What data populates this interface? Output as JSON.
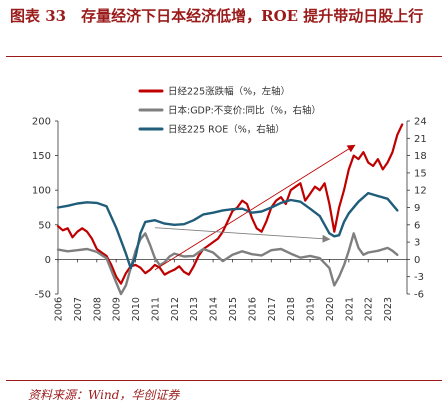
{
  "header": {
    "title": "图表 33　存量经济下日本经济低增，ROE 提升带动日股上行"
  },
  "footer": {
    "source": "资料来源：Wind，华创证券"
  },
  "chart_data": {
    "type": "line",
    "xlabel": "",
    "x_ticks": [
      "2006",
      "2007",
      "2008",
      "2009",
      "2010",
      "2011",
      "2012",
      "2013",
      "2014",
      "2015",
      "2016",
      "2017",
      "2018",
      "2019",
      "2020",
      "2021",
      "2022",
      "2023"
    ],
    "y_left": {
      "range": [
        -50,
        200
      ],
      "ticks": [
        -50,
        0,
        50,
        100,
        150,
        200
      ]
    },
    "y_right": {
      "range": [
        -6,
        24
      ],
      "ticks": [
        -6,
        -3,
        0,
        3,
        6,
        9,
        12,
        15,
        18,
        21,
        24
      ]
    },
    "legend_position": "top-center",
    "colors": {
      "nikkei": "#c00000",
      "gdp": "#7f7f7f",
      "roe": "#1f5d7a",
      "arrow": "#c00000",
      "arrow_gray": "#7f7f7f"
    },
    "series": [
      {
        "name": "日经225涨跌幅（%，左轴）",
        "axis": "left",
        "x": [
          2006.0,
          2006.25,
          2006.5,
          2006.75,
          2007.0,
          2007.25,
          2007.5,
          2007.75,
          2008.0,
          2008.25,
          2008.5,
          2008.75,
          2009.0,
          2009.25,
          2009.5,
          2009.75,
          2010.0,
          2010.25,
          2010.5,
          2010.75,
          2011.0,
          2011.25,
          2011.5,
          2011.75,
          2012.0,
          2012.25,
          2012.5,
          2012.75,
          2013.0,
          2013.25,
          2013.5,
          2013.75,
          2014.0,
          2014.25,
          2014.5,
          2014.75,
          2015.0,
          2015.25,
          2015.5,
          2015.75,
          2016.0,
          2016.25,
          2016.5,
          2016.75,
          2017.0,
          2017.25,
          2017.5,
          2017.75,
          2018.0,
          2018.25,
          2018.5,
          2018.75,
          2019.0,
          2019.25,
          2019.5,
          2019.75,
          2020.0,
          2020.25,
          2020.5,
          2020.75,
          2021.0,
          2021.25,
          2021.5,
          2021.75,
          2022.0,
          2022.25,
          2022.5,
          2022.75,
          2023.0,
          2023.25,
          2023.5,
          2023.75
        ],
        "values": [
          48,
          42,
          45,
          32,
          40,
          45,
          40,
          30,
          15,
          10,
          5,
          -8,
          -25,
          -35,
          -20,
          -10,
          -8,
          -12,
          -20,
          -15,
          -8,
          -12,
          -22,
          -18,
          -15,
          -10,
          -18,
          -22,
          -10,
          5,
          15,
          20,
          25,
          30,
          40,
          55,
          70,
          75,
          85,
          80,
          60,
          45,
          40,
          55,
          75,
          85,
          90,
          80,
          100,
          105,
          110,
          85,
          95,
          105,
          100,
          110,
          80,
          40,
          75,
          100,
          130,
          150,
          145,
          155,
          140,
          135,
          145,
          130,
          140,
          155,
          180,
          195
        ]
      },
      {
        "name": "日本:GDP:不变价:同比（%，右轴）",
        "axis": "right",
        "x": [
          2006.0,
          2006.5,
          2007.0,
          2007.5,
          2008.0,
          2008.5,
          2009.0,
          2009.25,
          2009.5,
          2009.75,
          2010.0,
          2010.25,
          2010.5,
          2010.75,
          2011.0,
          2011.25,
          2011.5,
          2011.75,
          2012.0,
          2012.5,
          2013.0,
          2013.5,
          2014.0,
          2014.5,
          2015.0,
          2015.5,
          2016.0,
          2016.5,
          2017.0,
          2017.5,
          2018.0,
          2018.5,
          2019.0,
          2019.5,
          2020.0,
          2020.25,
          2020.5,
          2020.75,
          2021.0,
          2021.25,
          2021.5,
          2021.75,
          2022.0,
          2022.5,
          2023.0,
          2023.25,
          2023.5
        ],
        "values": [
          1.7,
          1.4,
          1.6,
          1.8,
          1.3,
          0.2,
          -4.0,
          -6.0,
          -4.5,
          -1.5,
          1.5,
          3.5,
          4.5,
          2.5,
          0.2,
          -1.0,
          -0.5,
          0.5,
          1.0,
          0.5,
          0.6,
          1.8,
          1.2,
          -0.3,
          0.8,
          1.4,
          0.9,
          0.7,
          1.6,
          1.8,
          1.0,
          0.3,
          0.6,
          0.2,
          -1.5,
          -4.5,
          -3.0,
          -1.0,
          1.5,
          4.5,
          2.0,
          0.8,
          1.2,
          1.5,
          2.0,
          1.5,
          0.8
        ]
      },
      {
        "name": "日经225 ROE（%，右轴）",
        "axis": "right",
        "x": [
          2006.0,
          2006.5,
          2007.0,
          2007.5,
          2008.0,
          2008.5,
          2009.0,
          2009.5,
          2009.75,
          2010.0,
          2010.25,
          2010.5,
          2011.0,
          2011.5,
          2012.0,
          2012.5,
          2013.0,
          2013.5,
          2014.0,
          2014.5,
          2015.0,
          2015.5,
          2016.0,
          2016.5,
          2017.0,
          2017.5,
          2018.0,
          2018.5,
          2019.0,
          2019.5,
          2020.0,
          2020.25,
          2020.5,
          2020.75,
          2021.0,
          2021.5,
          2022.0,
          2022.5,
          2023.0,
          2023.5
        ],
        "values": [
          9.0,
          9.3,
          9.7,
          9.9,
          9.8,
          9.2,
          5.5,
          1.0,
          -1.5,
          0.5,
          4.5,
          6.5,
          6.8,
          6.2,
          6.0,
          6.1,
          6.8,
          7.8,
          8.1,
          8.5,
          8.7,
          8.8,
          8.1,
          8.3,
          9.0,
          9.8,
          10.3,
          10.0,
          8.8,
          7.5,
          4.5,
          4.0,
          4.2,
          6.5,
          8.0,
          10.0,
          11.5,
          11.0,
          10.5,
          8.5
        ]
      }
    ],
    "annotations": [
      {
        "type": "arrow",
        "color": "red",
        "from": [
          2011.0,
          -15
        ],
        "to": [
          2021.3,
          165
        ]
      },
      {
        "type": "arrow",
        "color": "gray",
        "from": [
          2011.0,
          5.5
        ],
        "to": [
          2020.0,
          3.5
        ]
      }
    ]
  }
}
